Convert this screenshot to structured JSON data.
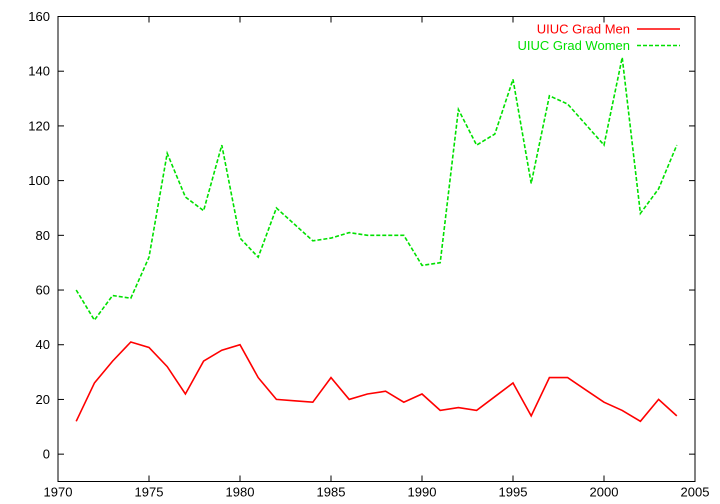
{
  "chart_data": {
    "type": "line",
    "title": "",
    "xlabel": "",
    "ylabel": "",
    "xlim": [
      1970,
      2005
    ],
    "ylim": [
      -10,
      160
    ],
    "xticks": [
      1970,
      1975,
      1980,
      1985,
      1990,
      1995,
      2000,
      2005
    ],
    "yticks": [
      0,
      20,
      40,
      60,
      80,
      100,
      120,
      140,
      160
    ],
    "grid": false,
    "legend_position": "top-right",
    "x": [
      1971,
      1972,
      1973,
      1974,
      1975,
      1976,
      1977,
      1978,
      1979,
      1980,
      1981,
      1982,
      1983,
      1984,
      1985,
      1986,
      1987,
      1988,
      1989,
      1990,
      1991,
      1992,
      1993,
      1994,
      1995,
      1996,
      1997,
      1998,
      1999,
      2000,
      2001,
      2002,
      2003,
      2004
    ],
    "series": [
      {
        "name": "UIUC Grad Men",
        "color": "#ff0000",
        "dash": "solid",
        "values": [
          12,
          26,
          34,
          41,
          39,
          32,
          22,
          34,
          38,
          40,
          28,
          20,
          19.5,
          19,
          28,
          20,
          22,
          23,
          19,
          22,
          16,
          17,
          16,
          21,
          26,
          14,
          28,
          28,
          23.5,
          19,
          16,
          12,
          20,
          14
        ]
      },
      {
        "name": "UIUC Grad Women",
        "color": "#00e000",
        "dash": "dashed",
        "values": [
          60,
          49,
          58,
          57,
          72,
          110,
          94,
          89,
          113,
          79,
          72,
          90,
          84,
          78,
          79,
          81,
          80,
          80,
          80,
          69,
          70,
          126,
          113,
          117,
          137,
          99,
          131,
          128,
          120.5,
          113,
          145,
          88,
          97,
          113
        ]
      }
    ]
  }
}
